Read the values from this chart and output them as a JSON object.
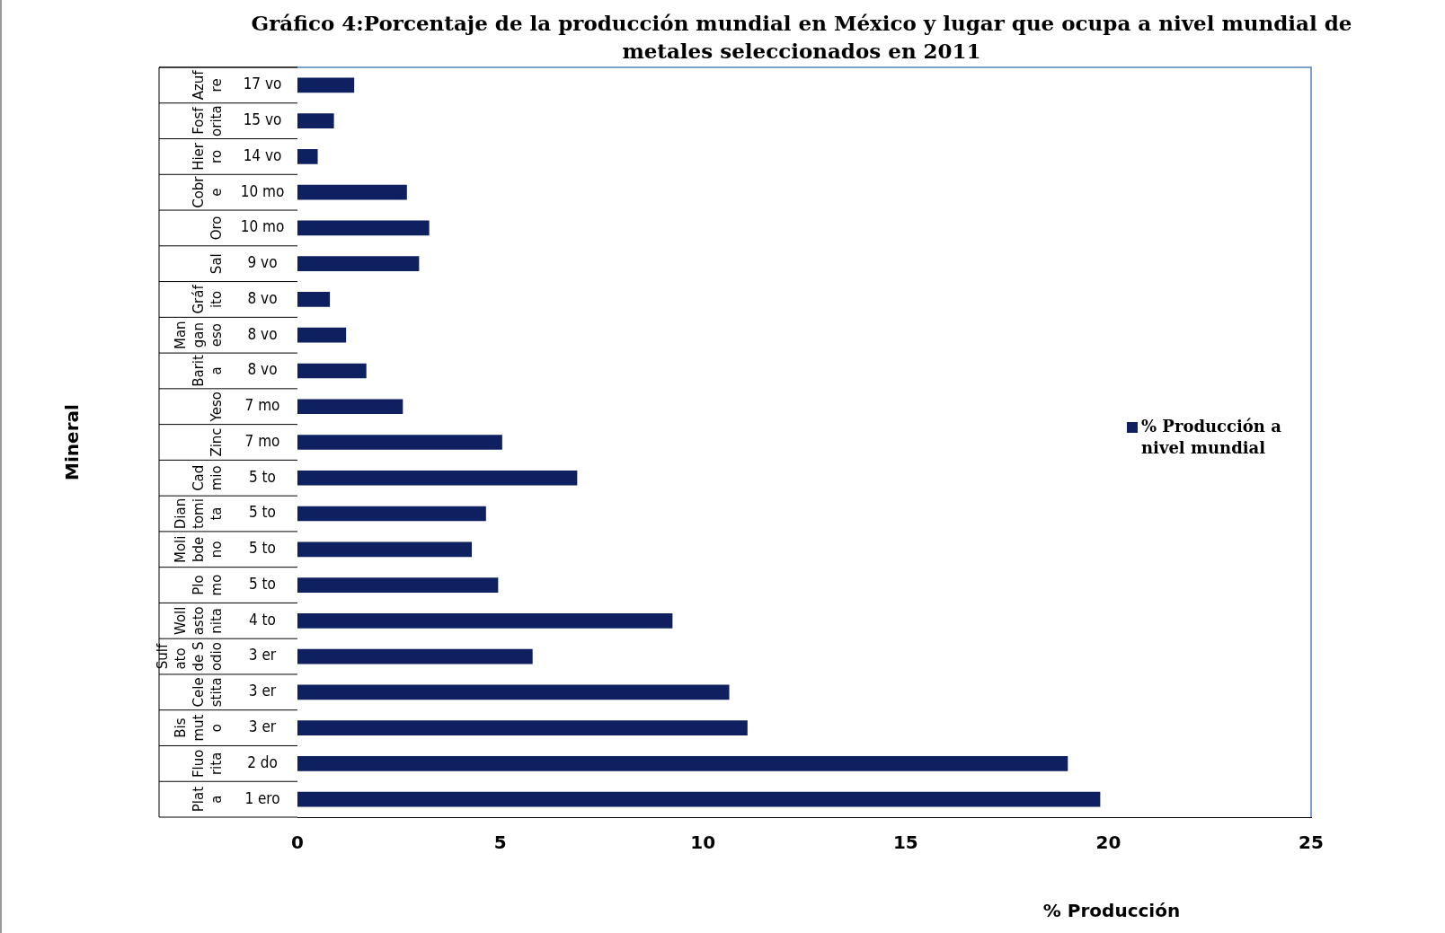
{
  "chart_data": {
    "type": "bar",
    "orientation": "horizontal",
    "title": "Gráfico 4:Porcentaje de la producción mundial en México y lugar que ocupa a nivel mundial de metales seleccionados en 2011",
    "xlabel": "% Producción",
    "ylabel": "Mineral",
    "categories": [
      "Azufre",
      "Fosforita",
      "Hierro",
      "Cobre",
      "Oro",
      "Sal",
      "Gráfito",
      "Manganeso",
      "Barita",
      "Yeso",
      "Zinc",
      "Cadmio",
      "Diantomita",
      "Molibdeno",
      "Plomo",
      "Wollastonita",
      "Sulfato de Sodio",
      "Celestita",
      "Bismuto",
      "Fluorita",
      "Plata"
    ],
    "series": [
      {
        "name": "% Producción a nivel mundial",
        "color": "#0f2060",
        "values": [
          1.4,
          0.9,
          0.5,
          2.7,
          3.25,
          3.0,
          0.8,
          1.2,
          1.7,
          2.6,
          5.05,
          6.9,
          4.65,
          4.3,
          4.95,
          9.25,
          5.8,
          10.65,
          11.1,
          19.0,
          19.8
        ]
      }
    ],
    "annotations": [
      "17 vo",
      "15 vo",
      "14 vo",
      "10 mo",
      "10 mo",
      "9 vo",
      "8 vo",
      "8 vo",
      "8 vo",
      "7 mo",
      "7 mo",
      "5 to",
      "5 to",
      "5 to",
      "5 to",
      "4 to",
      "3 er",
      "3 er",
      "3 er",
      "2 do",
      "1 ero"
    ],
    "xlim": [
      0,
      25
    ],
    "xticks": [
      0,
      5,
      10,
      15,
      20,
      25
    ],
    "grid": false,
    "legend": "right"
  }
}
